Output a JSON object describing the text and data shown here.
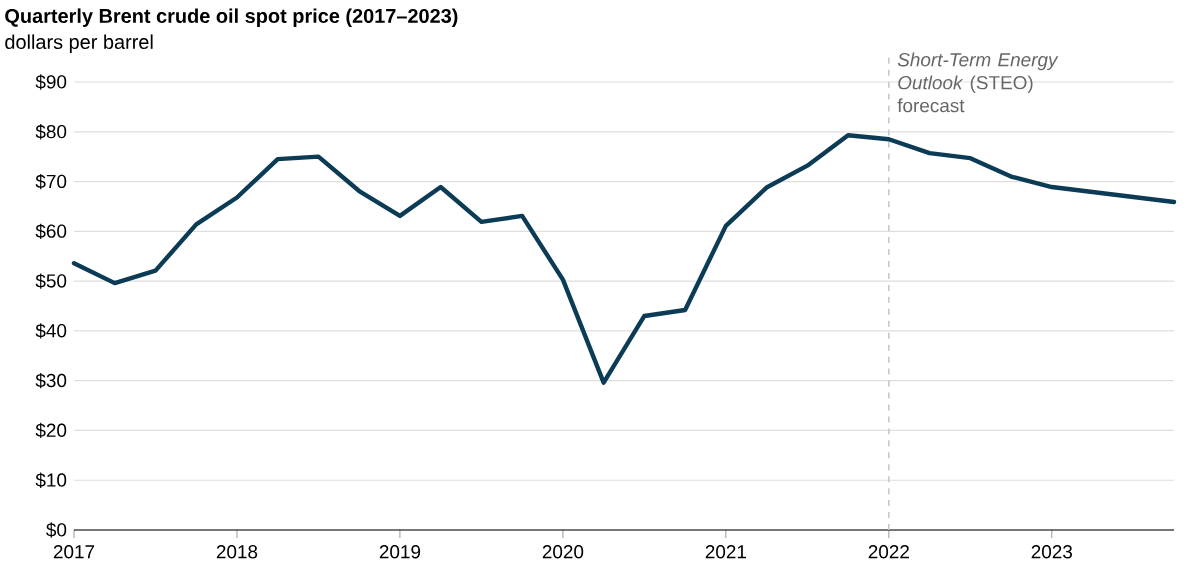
{
  "chart_data": {
    "type": "line",
    "title": "Quarterly Brent crude oil spot price (2017–2023)",
    "subtitle": "dollars per barrel",
    "x": [
      2017.0,
      2017.25,
      2017.5,
      2017.75,
      2018.0,
      2018.25,
      2018.5,
      2018.75,
      2019.0,
      2019.25,
      2019.5,
      2019.75,
      2020.0,
      2020.25,
      2020.5,
      2020.75,
      2021.0,
      2021.25,
      2021.5,
      2021.75,
      2022.0,
      2022.25,
      2022.5,
      2022.75,
      2023.0,
      2023.25,
      2023.5,
      2023.75
    ],
    "series": [
      {
        "color": "#0c3b55",
        "values": [
          53.6,
          49.6,
          52.1,
          61.4,
          66.8,
          74.5,
          75.0,
          68.1,
          63.1,
          68.9,
          61.9,
          63.1,
          50.3,
          29.6,
          43.0,
          44.2,
          61.1,
          68.8,
          73.2,
          79.3,
          78.5,
          75.7,
          74.7,
          71.0,
          68.9,
          67.9,
          66.9,
          65.9
        ]
      }
    ],
    "xlim": [
      2017,
      2023.75
    ],
    "xticks": [
      2017,
      2018,
      2019,
      2020,
      2021,
      2022,
      2023
    ],
    "ylim": [
      0,
      90
    ],
    "yticks": [
      {
        "value": 0,
        "label": "$0"
      },
      {
        "value": 10,
        "label": "$10"
      },
      {
        "value": 20,
        "label": "$20"
      },
      {
        "value": 30,
        "label": "$30"
      },
      {
        "value": 40,
        "label": "$40"
      },
      {
        "value": 50,
        "label": "$50"
      },
      {
        "value": 60,
        "label": "$60"
      },
      {
        "value": 70,
        "label": "$70"
      },
      {
        "value": 80,
        "label": "$80"
      },
      {
        "value": 90,
        "label": "$90"
      }
    ],
    "ref_lines": [
      {
        "axis": "x",
        "value": 2022,
        "label": "*Short-Term Energy Outlook* (STEO) forecast",
        "color": "#c8c8c8",
        "line_style": "dashed"
      }
    ],
    "grid": "y",
    "marker": "none",
    "line_style": "solid"
  }
}
